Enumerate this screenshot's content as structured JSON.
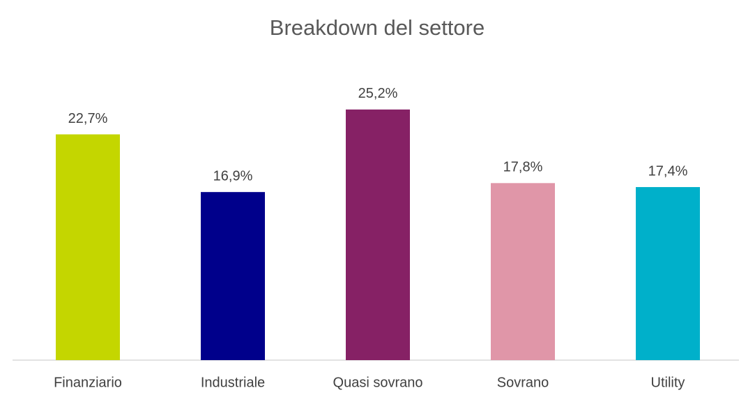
{
  "chart_data": {
    "type": "bar",
    "title": "Breakdown del settore",
    "categories": [
      "Finanziario",
      "Industriale",
      "Quasi sovrano",
      "Sovrano",
      "Utility"
    ],
    "values": [
      22.7,
      16.9,
      25.2,
      17.8,
      17.4
    ],
    "value_labels": [
      "22,7%",
      "16,9%",
      "25,2%",
      "17,8%",
      "17,4%"
    ],
    "colors": [
      "#c4d600",
      "#00008b",
      "#862165",
      "#e096a8",
      "#00b0ca"
    ]
  }
}
